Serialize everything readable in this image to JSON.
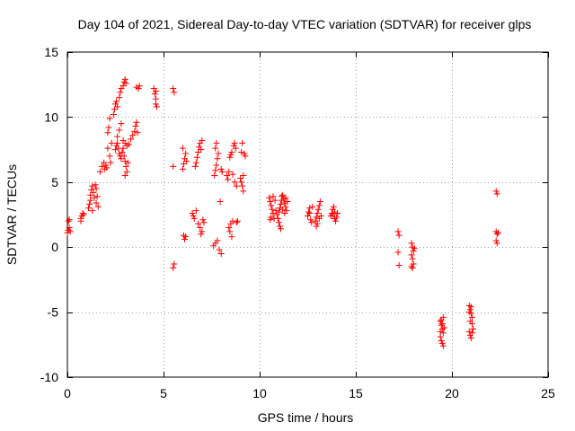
{
  "chart_data": {
    "type": "scatter",
    "title": "Day 104 of 2021, Sidereal Day-to-day VTEC variation (SDTVAR) for receiver glps",
    "xlabel": "GPS time / hours",
    "ylabel": "SDTVAR / TECUs",
    "xlim": [
      0,
      25
    ],
    "ylim": [
      -10,
      15
    ],
    "xticks": [
      0,
      5,
      10,
      15,
      20,
      25
    ],
    "yticks": [
      -10,
      -5,
      0,
      5,
      10,
      15
    ],
    "grid": true,
    "marker": "+",
    "color": "#ff0000",
    "series": [
      {
        "name": "SDTVAR",
        "points": [
          [
            0.0,
            1.1
          ],
          [
            0.05,
            1.3
          ],
          [
            0.1,
            1.5
          ],
          [
            0.05,
            2.0
          ],
          [
            0.1,
            2.1
          ],
          [
            0.15,
            1.2
          ],
          [
            0.7,
            2.2
          ],
          [
            0.75,
            2.4
          ],
          [
            0.8,
            2.6
          ],
          [
            0.7,
            2.0
          ],
          [
            0.85,
            2.5
          ],
          [
            1.1,
            3.0
          ],
          [
            1.15,
            3.3
          ],
          [
            1.2,
            3.6
          ],
          [
            1.2,
            4.0
          ],
          [
            1.25,
            4.4
          ],
          [
            1.3,
            4.7
          ],
          [
            1.35,
            4.2
          ],
          [
            1.4,
            3.8
          ],
          [
            1.3,
            2.8
          ],
          [
            1.45,
            4.8
          ],
          [
            1.5,
            4.5
          ],
          [
            1.55,
            3.9
          ],
          [
            1.5,
            3.4
          ],
          [
            1.6,
            3.1
          ],
          [
            1.7,
            5.8
          ],
          [
            1.8,
            6.2
          ],
          [
            1.9,
            6.5
          ],
          [
            2.0,
            6.3
          ],
          [
            1.95,
            6.0
          ],
          [
            2.05,
            6.1
          ],
          [
            2.1,
            8.8
          ],
          [
            2.15,
            9.2
          ],
          [
            2.2,
            9.9
          ],
          [
            2.1,
            7.6
          ],
          [
            2.2,
            7.0
          ],
          [
            2.3,
            8.0
          ],
          [
            2.25,
            6.5
          ],
          [
            2.4,
            10.2
          ],
          [
            2.45,
            10.6
          ],
          [
            2.5,
            11.0
          ],
          [
            2.55,
            11.2
          ],
          [
            2.6,
            10.8
          ],
          [
            2.7,
            11.5
          ],
          [
            2.75,
            11.9
          ],
          [
            2.8,
            12.2
          ],
          [
            2.9,
            12.4
          ],
          [
            2.95,
            12.7
          ],
          [
            3.0,
            12.9
          ],
          [
            3.05,
            12.6
          ],
          [
            2.5,
            7.5
          ],
          [
            2.55,
            7.8
          ],
          [
            2.6,
            8.0
          ],
          [
            2.65,
            7.6
          ],
          [
            2.7,
            7.2
          ],
          [
            2.75,
            7.0
          ],
          [
            2.8,
            6.8
          ],
          [
            2.85,
            7.3
          ],
          [
            2.9,
            7.6
          ],
          [
            2.95,
            7.0
          ],
          [
            3.0,
            6.6
          ],
          [
            3.05,
            6.2
          ],
          [
            3.1,
            5.8
          ],
          [
            3.15,
            6.5
          ],
          [
            3.0,
            5.5
          ],
          [
            2.6,
            8.5
          ],
          [
            2.7,
            9.0
          ],
          [
            2.8,
            9.5
          ],
          [
            2.9,
            8.2
          ],
          [
            3.0,
            8.0
          ],
          [
            3.1,
            7.8
          ],
          [
            3.2,
            7.9
          ],
          [
            3.3,
            8.3
          ],
          [
            3.4,
            8.6
          ],
          [
            3.5,
            8.9
          ],
          [
            3.55,
            9.3
          ],
          [
            3.6,
            9.6
          ],
          [
            3.65,
            8.8
          ],
          [
            3.6,
            12.3
          ],
          [
            3.7,
            12.2
          ],
          [
            3.75,
            12.4
          ],
          [
            4.5,
            12.2
          ],
          [
            4.55,
            11.8
          ],
          [
            4.6,
            11.4
          ],
          [
            4.6,
            11.0
          ],
          [
            4.65,
            10.8
          ],
          [
            4.6,
            12.0
          ],
          [
            5.5,
            12.2
          ],
          [
            5.55,
            11.9
          ],
          [
            5.5,
            6.2
          ],
          [
            5.55,
            -1.3
          ],
          [
            5.5,
            -1.6
          ],
          [
            6.0,
            6.0
          ],
          [
            6.05,
            6.4
          ],
          [
            6.1,
            6.8
          ],
          [
            6.15,
            7.2
          ],
          [
            6.0,
            7.6
          ],
          [
            6.2,
            6.6
          ],
          [
            6.05,
            0.9
          ],
          [
            6.1,
            0.6
          ],
          [
            6.15,
            0.8
          ],
          [
            6.5,
            2.6
          ],
          [
            6.55,
            2.4
          ],
          [
            6.6,
            2.2
          ],
          [
            6.65,
            6.2
          ],
          [
            6.7,
            6.5
          ],
          [
            6.75,
            6.9
          ],
          [
            6.8,
            7.3
          ],
          [
            6.85,
            7.7
          ],
          [
            6.9,
            8.0
          ],
          [
            7.0,
            8.2
          ],
          [
            6.95,
            7.5
          ],
          [
            6.8,
            1.8
          ],
          [
            6.9,
            1.5
          ],
          [
            7.0,
            1.2
          ],
          [
            7.05,
            2.1
          ],
          [
            7.1,
            1.9
          ],
          [
            6.95,
            1.0
          ],
          [
            6.7,
            2.8
          ],
          [
            7.6,
            0.1
          ],
          [
            7.7,
            0.3
          ],
          [
            7.8,
            0.5
          ],
          [
            7.65,
            5.5
          ],
          [
            7.7,
            5.9
          ],
          [
            7.75,
            6.3
          ],
          [
            7.8,
            6.8
          ],
          [
            7.7,
            7.6
          ],
          [
            7.75,
            8.0
          ],
          [
            7.85,
            7.2
          ],
          [
            7.9,
            -0.2
          ],
          [
            8.0,
            -0.5
          ],
          [
            7.95,
            3.5
          ],
          [
            8.0,
            6.0
          ],
          [
            8.05,
            5.8
          ],
          [
            8.3,
            5.5
          ],
          [
            8.35,
            5.2
          ],
          [
            8.4,
            5.8
          ],
          [
            8.45,
            6.9
          ],
          [
            8.5,
            7.1
          ],
          [
            8.55,
            7.3
          ],
          [
            8.4,
            1.5
          ],
          [
            8.45,
            1.2
          ],
          [
            8.5,
            1.8
          ],
          [
            8.6,
            2.0
          ],
          [
            8.55,
            0.8
          ],
          [
            8.65,
            7.8
          ],
          [
            8.7,
            8.0
          ],
          [
            8.75,
            7.6
          ],
          [
            8.7,
            5.0
          ],
          [
            8.8,
            4.7
          ],
          [
            8.8,
            1.9
          ],
          [
            8.85,
            2.0
          ],
          [
            8.6,
            5.6
          ],
          [
            9.0,
            5.3
          ],
          [
            9.05,
            5.0
          ],
          [
            9.1,
            4.7
          ],
          [
            9.15,
            4.3
          ],
          [
            9.2,
            7.2
          ],
          [
            9.25,
            7.0
          ],
          [
            9.1,
            8.0
          ],
          [
            9.15,
            5.5
          ],
          [
            9.05,
            7.3
          ],
          [
            10.5,
            3.8
          ],
          [
            10.55,
            3.5
          ],
          [
            10.6,
            3.2
          ],
          [
            10.65,
            2.9
          ],
          [
            10.7,
            2.6
          ],
          [
            10.6,
            2.3
          ],
          [
            10.55,
            2.1
          ],
          [
            10.7,
            3.9
          ],
          [
            10.75,
            2.2
          ],
          [
            10.8,
            3.6
          ],
          [
            10.85,
            2.8
          ],
          [
            10.9,
            2.5
          ],
          [
            10.95,
            2.2
          ],
          [
            11.0,
            1.9
          ],
          [
            11.05,
            1.6
          ],
          [
            11.1,
            1.4
          ],
          [
            11.0,
            2.7
          ],
          [
            11.05,
            3.0
          ],
          [
            11.1,
            3.3
          ],
          [
            11.15,
            3.6
          ],
          [
            11.2,
            4.0
          ],
          [
            11.25,
            3.7
          ],
          [
            11.3,
            3.4
          ],
          [
            11.35,
            3.1
          ],
          [
            11.4,
            2.8
          ],
          [
            11.2,
            2.9
          ],
          [
            11.3,
            2.6
          ],
          [
            11.45,
            3.5
          ],
          [
            11.35,
            3.8
          ],
          [
            11.15,
            3.9
          ],
          [
            12.5,
            2.4
          ],
          [
            12.55,
            2.7
          ],
          [
            12.6,
            3.0
          ],
          [
            12.65,
            2.1
          ],
          [
            12.7,
            1.9
          ],
          [
            12.6,
            2.6
          ],
          [
            12.75,
            3.1
          ],
          [
            12.9,
            2.0
          ],
          [
            12.95,
            2.3
          ],
          [
            13.0,
            2.6
          ],
          [
            13.05,
            2.9
          ],
          [
            13.1,
            3.2
          ],
          [
            13.15,
            3.5
          ],
          [
            13.0,
            1.8
          ],
          [
            13.1,
            2.2
          ],
          [
            13.2,
            2.4
          ],
          [
            12.95,
            1.6
          ],
          [
            13.7,
            2.4
          ],
          [
            13.75,
            2.6
          ],
          [
            13.8,
            2.9
          ],
          [
            13.85,
            3.1
          ],
          [
            13.9,
            2.2
          ],
          [
            13.95,
            2.0
          ],
          [
            13.8,
            2.5
          ],
          [
            13.9,
            2.7
          ],
          [
            14.0,
            2.3
          ],
          [
            14.05,
            2.6
          ],
          [
            17.2,
            1.2
          ],
          [
            17.25,
            0.9
          ],
          [
            17.2,
            -0.4
          ],
          [
            17.25,
            -1.4
          ],
          [
            17.9,
            0.3
          ],
          [
            17.95,
            0.0
          ],
          [
            18.0,
            -0.3
          ],
          [
            17.9,
            -0.6
          ],
          [
            17.95,
            -0.9
          ],
          [
            18.0,
            -1.3
          ],
          [
            17.9,
            -1.5
          ],
          [
            18.05,
            -0.1
          ],
          [
            17.95,
            -1.6
          ],
          [
            19.4,
            -5.7
          ],
          [
            19.45,
            -6.0
          ],
          [
            19.5,
            -6.3
          ],
          [
            19.55,
            -6.6
          ],
          [
            19.4,
            -6.9
          ],
          [
            19.45,
            -7.2
          ],
          [
            19.5,
            -7.4
          ],
          [
            19.55,
            -7.6
          ],
          [
            19.5,
            -5.9
          ],
          [
            19.6,
            -6.2
          ],
          [
            19.45,
            -5.6
          ],
          [
            19.55,
            -5.4
          ],
          [
            19.4,
            -6.5
          ],
          [
            20.9,
            -4.5
          ],
          [
            20.95,
            -4.8
          ],
          [
            21.0,
            -5.1
          ],
          [
            21.05,
            -5.4
          ],
          [
            20.95,
            -5.7
          ],
          [
            20.9,
            -6.5
          ],
          [
            20.95,
            -6.8
          ],
          [
            21.0,
            -7.0
          ],
          [
            21.05,
            -6.6
          ],
          [
            21.1,
            -6.3
          ],
          [
            20.9,
            -5.0
          ],
          [
            21.0,
            -4.6
          ],
          [
            21.05,
            -5.9
          ],
          [
            22.3,
            4.3
          ],
          [
            22.35,
            4.1
          ],
          [
            22.3,
            1.2
          ],
          [
            22.35,
            1.0
          ],
          [
            22.4,
            1.1
          ],
          [
            22.3,
            0.5
          ],
          [
            22.35,
            0.3
          ]
        ]
      }
    ]
  }
}
